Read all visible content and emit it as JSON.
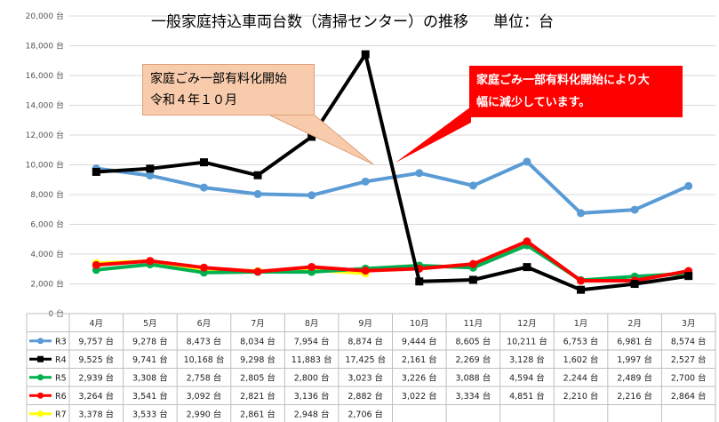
{
  "header": {
    "title": "一般家庭持込車両台数（清掃センター）の推移",
    "unit_label": "単位：台"
  },
  "callouts": {
    "left": "家庭ごみ一部有料化開始\n令和４年１０月",
    "right": "家庭ごみ一部有料化開始により大\n幅に減少しています。"
  },
  "colors": {
    "callout_left_fill": "#f8cbad",
    "callout_right_fill": "#ff0000",
    "grid": "#d9d9d9"
  },
  "chart_data": {
    "type": "line",
    "title": "一般家庭持込車両台数（清掃センター）の推移",
    "unit": "台",
    "categories": [
      "4月",
      "5月",
      "6月",
      "7月",
      "8月",
      "9月",
      "10月",
      "11月",
      "12月",
      "1月",
      "2月",
      "3月"
    ],
    "ylim": [
      0,
      20000
    ],
    "yticks": [
      0,
      2000,
      4000,
      6000,
      8000,
      10000,
      12000,
      14000,
      16000,
      18000,
      20000
    ],
    "ytick_labels": [
      "0 台",
      "2,000 台",
      "4,000 台",
      "6,000 台",
      "8,000 台",
      "10,000 台",
      "12,000 台",
      "14,000 台",
      "16,000 台",
      "18,000 台",
      "20,000 台"
    ],
    "grid": true,
    "legend": "table-bottom",
    "series": [
      {
        "name": "R3",
        "color": "#5b9bd5",
        "marker": "circle",
        "values": [
          9757,
          9278,
          8473,
          8034,
          7954,
          8874,
          9444,
          8605,
          10211,
          6753,
          6981,
          8574
        ],
        "labels": [
          "9,757 台",
          "9,278 台",
          "8,473 台",
          "8,034 台",
          "7,954 台",
          "8,874 台",
          "9,444 台",
          "8,605 台",
          "10,211 台",
          "6,753 台",
          "6,981 台",
          "8,574 台"
        ]
      },
      {
        "name": "R4",
        "color": "#000000",
        "marker": "square",
        "values": [
          9525,
          9741,
          10168,
          9298,
          11883,
          17425,
          2161,
          2269,
          3128,
          1602,
          1997,
          2527
        ],
        "labels": [
          "9,525 台",
          "9,741 台",
          "10,168 台",
          "9,298 台",
          "11,883 台",
          "17,425 台",
          "2,161 台",
          "2,269 台",
          "3,128 台",
          "1,602 台",
          "1,997 台",
          "2,527 台"
        ]
      },
      {
        "name": "R5",
        "color": "#00b050",
        "marker": "circle",
        "values": [
          2939,
          3308,
          2758,
          2805,
          2800,
          3023,
          3226,
          3088,
          4594,
          2244,
          2489,
          2700
        ],
        "labels": [
          "2,939 台",
          "3,308 台",
          "2,758 台",
          "2,805 台",
          "2,800 台",
          "3,023 台",
          "3,226 台",
          "3,088 台",
          "4,594 台",
          "2,244 台",
          "2,489 台",
          "2,700 台"
        ]
      },
      {
        "name": "R6",
        "color": "#ff0000",
        "marker": "circle",
        "values": [
          3264,
          3541,
          3092,
          2821,
          3136,
          2882,
          3022,
          3334,
          4851,
          2210,
          2216,
          2864
        ],
        "labels": [
          "3,264 台",
          "3,541 台",
          "3,092 台",
          "2,821 台",
          "3,136 台",
          "2,882 台",
          "3,022 台",
          "3,334 台",
          "4,851 台",
          "2,210 台",
          "2,216 台",
          "2,864 台"
        ]
      },
      {
        "name": "R7",
        "color": "#ffff00",
        "marker": "circle",
        "values": [
          3378,
          3533,
          2990,
          2861,
          2948,
          2706,
          null,
          null,
          null,
          null,
          null,
          null
        ],
        "labels": [
          "3,378 台",
          "3,533 台",
          "2,990 台",
          "2,861 台",
          "2,948 台",
          "2,706 台",
          "",
          "",
          "",
          "",
          "",
          ""
        ]
      }
    ]
  }
}
